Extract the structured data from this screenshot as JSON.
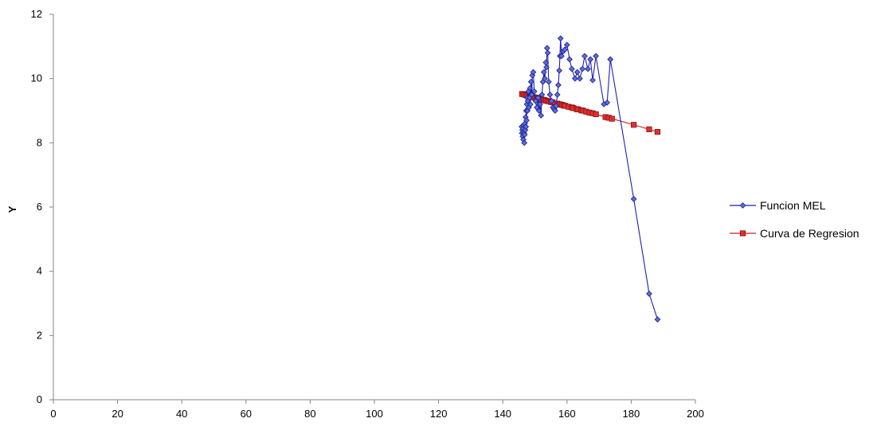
{
  "chart_data": {
    "type": "line",
    "title": "",
    "xlabel": "",
    "ylabel": "Y",
    "xlim": [
      0,
      200
    ],
    "ylim": [
      0,
      12
    ],
    "x_ticks": [
      0,
      20,
      40,
      60,
      80,
      100,
      120,
      140,
      160,
      180,
      200
    ],
    "y_ticks": [
      0,
      2,
      4,
      6,
      8,
      10,
      12
    ],
    "x_tick_labels": [
      "0",
      "20",
      "40",
      "60",
      "80",
      "100",
      "120",
      "140",
      "160",
      "180",
      "200"
    ],
    "y_tick_labels": [
      "0",
      "2",
      "4",
      "6",
      "8",
      "10",
      "12"
    ],
    "grid": false,
    "legend_position": "right",
    "series": [
      {
        "name": "Funcion MEL",
        "color": "#1f1fb3",
        "marker": "diamond",
        "points": [
          [
            145.9,
            8.5
          ],
          [
            146.0,
            8.3
          ],
          [
            146.1,
            8.4
          ],
          [
            146.2,
            8.2
          ],
          [
            146.3,
            8.45
          ],
          [
            146.4,
            8.1
          ],
          [
            146.5,
            8.55
          ],
          [
            146.6,
            8.3
          ],
          [
            146.7,
            8.0
          ],
          [
            146.8,
            8.25
          ],
          [
            146.9,
            8.6
          ],
          [
            147.0,
            8.4
          ],
          [
            147.1,
            8.8
          ],
          [
            147.2,
            8.5
          ],
          [
            147.3,
            9.0
          ],
          [
            147.4,
            8.7
          ],
          [
            147.5,
            9.2
          ],
          [
            147.6,
            9.4
          ],
          [
            147.7,
            9.0
          ],
          [
            147.8,
            9.3
          ],
          [
            148.0,
            9.6
          ],
          [
            148.1,
            9.1
          ],
          [
            148.3,
            9.4
          ],
          [
            148.5,
            9.7
          ],
          [
            148.6,
            9.2
          ],
          [
            148.8,
            9.9
          ],
          [
            149.0,
            9.5
          ],
          [
            149.2,
            10.1
          ],
          [
            149.5,
            10.2
          ],
          [
            149.8,
            9.6
          ],
          [
            150.2,
            9.3
          ],
          [
            150.6,
            9.1
          ],
          [
            151.0,
            9.4
          ],
          [
            151.3,
            9.0
          ],
          [
            151.6,
            9.2
          ],
          [
            151.9,
            8.85
          ],
          [
            152.2,
            9.5
          ],
          [
            152.5,
            9.9
          ],
          [
            152.8,
            10.2
          ],
          [
            153.1,
            10.0
          ],
          [
            153.4,
            10.5
          ],
          [
            153.6,
            10.35
          ],
          [
            153.8,
            10.95
          ],
          [
            154.0,
            10.8
          ],
          [
            154.3,
            9.9
          ],
          [
            154.7,
            9.5
          ],
          [
            155.2,
            9.3
          ],
          [
            155.6,
            9.1
          ],
          [
            156.0,
            9.05
          ],
          [
            156.3,
            9.0
          ],
          [
            156.6,
            9.15
          ],
          [
            157.0,
            9.5
          ],
          [
            157.3,
            9.8
          ],
          [
            157.6,
            10.25
          ],
          [
            157.8,
            10.7
          ],
          [
            158.0,
            11.25
          ],
          [
            158.3,
            10.7
          ],
          [
            158.8,
            10.85
          ],
          [
            159.3,
            10.9
          ],
          [
            160.0,
            11.05
          ],
          [
            160.8,
            10.6
          ],
          [
            161.5,
            10.3
          ],
          [
            162.5,
            10.0
          ],
          [
            163.2,
            10.2
          ],
          [
            164.0,
            10.0
          ],
          [
            164.8,
            10.3
          ],
          [
            165.5,
            10.7
          ],
          [
            166.5,
            10.3
          ],
          [
            167.3,
            10.6
          ],
          [
            168.0,
            9.95
          ],
          [
            169.0,
            10.7
          ],
          [
            171.5,
            9.2
          ],
          [
            172.5,
            9.25
          ],
          [
            173.5,
            10.6
          ],
          [
            180.8,
            6.25
          ],
          [
            185.6,
            3.3
          ],
          [
            188.2,
            2.5
          ]
        ]
      },
      {
        "name": "Curva de Regresion",
        "color": "#cc1f1f",
        "marker": "square",
        "points": [
          [
            146.0,
            9.52
          ],
          [
            146.5,
            9.51
          ],
          [
            147.0,
            9.49
          ],
          [
            147.5,
            9.48
          ],
          [
            148.0,
            9.46
          ],
          [
            148.5,
            9.45
          ],
          [
            149.0,
            9.44
          ],
          [
            149.5,
            9.42
          ],
          [
            150.0,
            9.41
          ],
          [
            150.5,
            9.4
          ],
          [
            151.0,
            9.38
          ],
          [
            151.5,
            9.37
          ],
          [
            152.0,
            9.35
          ],
          [
            152.5,
            9.34
          ],
          [
            153.0,
            9.33
          ],
          [
            153.5,
            9.31
          ],
          [
            154.0,
            9.3
          ],
          [
            154.5,
            9.29
          ],
          [
            155.0,
            9.27
          ],
          [
            155.5,
            9.26
          ],
          [
            157.0,
            9.22
          ],
          [
            157.5,
            9.2
          ],
          [
            158.0,
            9.19
          ],
          [
            158.5,
            9.18
          ],
          [
            159.0,
            9.16
          ],
          [
            159.5,
            9.15
          ],
          [
            160.5,
            9.12
          ],
          [
            161.5,
            9.1
          ],
          [
            162.0,
            9.08
          ],
          [
            163.0,
            9.05
          ],
          [
            163.5,
            9.04
          ],
          [
            164.5,
            9.01
          ],
          [
            165.0,
            9.0
          ],
          [
            166.0,
            8.97
          ],
          [
            167.0,
            8.94
          ],
          [
            168.0,
            8.92
          ],
          [
            169.0,
            8.89
          ],
          [
            172.0,
            8.8
          ],
          [
            173.0,
            8.78
          ],
          [
            174.0,
            8.75
          ],
          [
            180.8,
            8.56
          ],
          [
            185.6,
            8.42
          ],
          [
            188.2,
            8.34
          ]
        ]
      }
    ]
  }
}
